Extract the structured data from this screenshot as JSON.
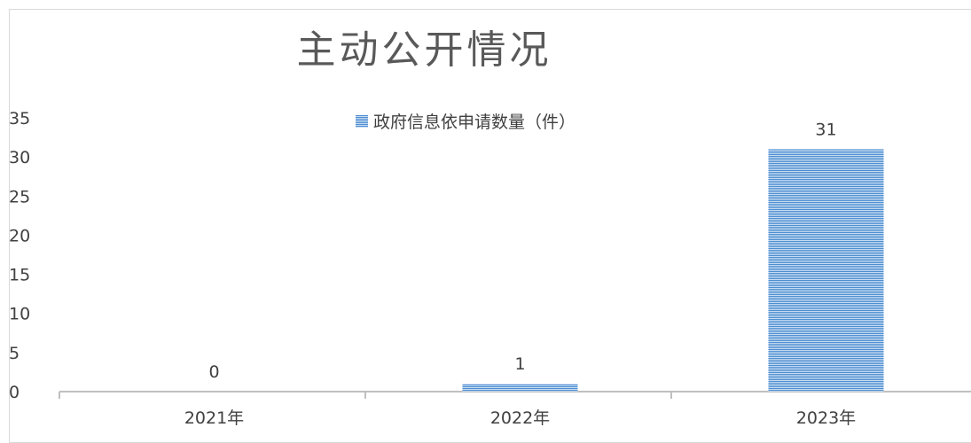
{
  "chart_data": {
    "type": "bar",
    "title": "主动公开情况",
    "categories": [
      "2021年",
      "2022年",
      "2023年"
    ],
    "series": [
      {
        "name": "政府信息依申请数量（件）",
        "values": [
          0,
          1,
          31
        ]
      }
    ],
    "data_labels": [
      "0",
      "1",
      "31"
    ],
    "ylim": [
      0,
      35
    ],
    "yticks": [
      "0",
      "5",
      "10",
      "15",
      "20",
      "25",
      "30",
      "35"
    ],
    "ytick_values": [
      0,
      5,
      10,
      15,
      20,
      25,
      30,
      35
    ],
    "grid": false,
    "legend_position": "top",
    "colors": {
      "bar": "#4e8ed1",
      "bar_stripe": "#c5dbf1",
      "axis": "#bfbfbf",
      "text": "#404040"
    }
  }
}
